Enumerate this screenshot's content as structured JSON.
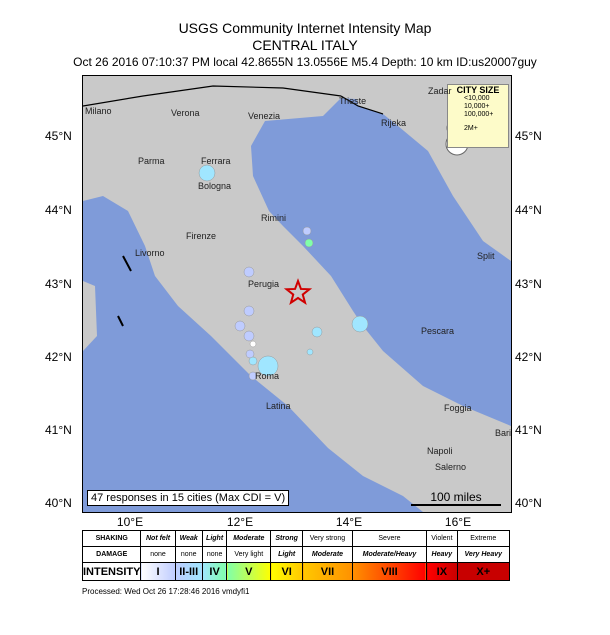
{
  "title": "USGS Community Internet Intensity Map",
  "region": "CENTRAL ITALY",
  "event_line": "Oct 26 2016 07:10:37 PM local 42.8655N 13.0556E M5.4 Depth: 10 km ID:us20007guy",
  "lat_labels": [
    "45°N",
    "44°N",
    "43°N",
    "42°N",
    "41°N",
    "40°N"
  ],
  "lon_labels": [
    "10°E",
    "12°E",
    "14°E",
    "16°E"
  ],
  "cities": [
    "Milano",
    "Verona",
    "Venezia",
    "Trieste",
    "Rijeka",
    "Zadar",
    "Split",
    "Parma",
    "Ferrara",
    "Bologna",
    "Rimini",
    "Firenze",
    "Livorno",
    "Perugia",
    "Pescara",
    "Roma",
    "Latina",
    "Foggia",
    "Bari",
    "Napoli",
    "Salerno"
  ],
  "responses": "47 responses in 15 cities (Max CDI = V)",
  "scale": "100 miles",
  "city_size": {
    "title": "CITY SIZE",
    "items": [
      "<10,000",
      "10,000+",
      "100,000+",
      "2M+"
    ]
  },
  "legend": {
    "shaking": [
      "SHAKING",
      "Not felt",
      "Weak",
      "Light",
      "Moderate",
      "Strong",
      "Very strong",
      "Severe",
      "Violent",
      "Extreme"
    ],
    "damage": [
      "DAMAGE",
      "none",
      "none",
      "none",
      "Very light",
      "Light",
      "Moderate",
      "Moderate/Heavy",
      "Heavy",
      "Very Heavy"
    ],
    "intensity": [
      "INTENSITY",
      "I",
      "II-III",
      "IV",
      "V",
      "VI",
      "VII",
      "VIII",
      "IX",
      "X+"
    ],
    "colors": [
      "#ffffff",
      "#bfccff",
      "#a0e6ff",
      "#80ffaa",
      "#ffff00",
      "#ffc800",
      "#ff9100",
      "#ff0000",
      "#c80000"
    ]
  },
  "processed": "Processed: Wed Oct 26 17:28:46 2016 vmdyfi1",
  "epicenter_color": "#d00000"
}
